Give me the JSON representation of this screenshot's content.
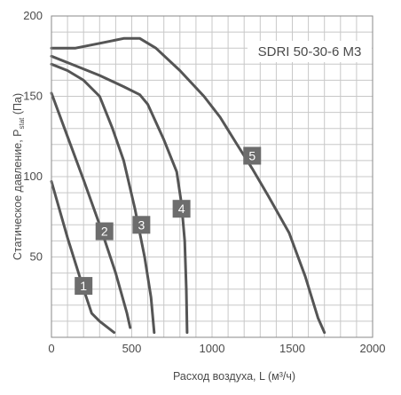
{
  "chart_data": {
    "type": "line",
    "title": "SDRI 50-30-6 M3",
    "xlabel": "Расход воздуха, L (м³/ч)",
    "ylabel": "Статическое давление, Pstat (Па)",
    "ylabel_main": "Статическое давление, P",
    "ylabel_sub": "stat",
    "ylabel_tail": " (Па)",
    "xlim": [
      0,
      2000
    ],
    "ylim": [
      0,
      200
    ],
    "x_ticks": [
      0,
      500,
      1000,
      1500,
      2000
    ],
    "y_ticks": [
      50,
      100,
      150,
      200
    ],
    "x_tick_labels": [
      "0",
      "500",
      "1000",
      "1500",
      "2000"
    ],
    "y_tick_labels": [
      "50",
      "100",
      "150",
      "200"
    ],
    "grid": true,
    "colors": {
      "curve": "#555555",
      "grid": "#c8c8c8",
      "badge": "#6d6d6d"
    },
    "series": [
      {
        "name": "1",
        "label_at": [
          200,
          32
        ],
        "points": [
          [
            0,
            97
          ],
          [
            100,
            62
          ],
          [
            200,
            30
          ],
          [
            250,
            15
          ],
          [
            300,
            10
          ],
          [
            390,
            3
          ]
        ]
      },
      {
        "name": "2",
        "label_at": [
          330,
          66
        ],
        "points": [
          [
            0,
            152
          ],
          [
            100,
            125
          ],
          [
            200,
            98
          ],
          [
            300,
            70
          ],
          [
            400,
            40
          ],
          [
            470,
            15
          ],
          [
            490,
            6
          ]
        ]
      },
      {
        "name": "3",
        "label_at": [
          560,
          70
        ],
        "points": [
          [
            0,
            170
          ],
          [
            100,
            166
          ],
          [
            200,
            160
          ],
          [
            300,
            150
          ],
          [
            380,
            130
          ],
          [
            450,
            110
          ],
          [
            520,
            80
          ],
          [
            580,
            50
          ],
          [
            620,
            25
          ],
          [
            640,
            3
          ]
        ]
      },
      {
        "name": "4",
        "label_at": [
          810,
          80
        ],
        "points": [
          [
            0,
            175
          ],
          [
            150,
            169
          ],
          [
            300,
            163
          ],
          [
            450,
            156
          ],
          [
            550,
            151
          ],
          [
            600,
            145
          ],
          [
            700,
            123
          ],
          [
            780,
            103
          ],
          [
            810,
            83
          ],
          [
            830,
            60
          ],
          [
            840,
            30
          ],
          [
            845,
            3
          ]
        ]
      },
      {
        "name": "5",
        "label_at": [
          1250,
          113
        ],
        "points": [
          [
            0,
            180
          ],
          [
            150,
            180
          ],
          [
            300,
            183
          ],
          [
            450,
            186
          ],
          [
            550,
            186
          ],
          [
            650,
            180
          ],
          [
            800,
            166
          ],
          [
            950,
            150
          ],
          [
            1050,
            137
          ],
          [
            1150,
            121
          ],
          [
            1250,
            105
          ],
          [
            1350,
            88
          ],
          [
            1480,
            65
          ],
          [
            1580,
            38
          ],
          [
            1660,
            12
          ],
          [
            1700,
            3
          ]
        ]
      }
    ]
  }
}
